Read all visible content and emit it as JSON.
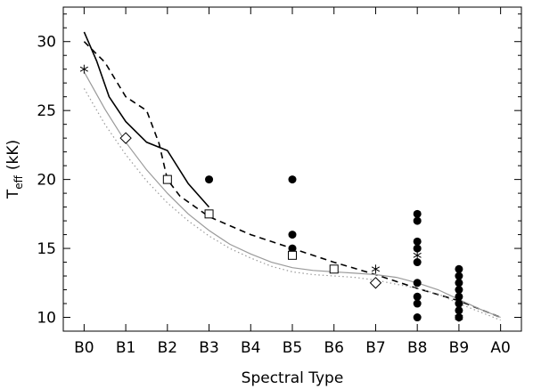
{
  "chart_data": {
    "type": "scatter",
    "title": "",
    "xlabel": "Spectral Type",
    "ylabel_main": "T",
    "ylabel_sub": "eff",
    "ylabel_unit": "(kK)",
    "categories": [
      "B0",
      "B1",
      "B2",
      "B3",
      "B4",
      "B5",
      "B6",
      "B7",
      "B8",
      "B9",
      "A0"
    ],
    "xlim": [
      -0.5,
      10.5
    ],
    "ylim": [
      9,
      32.5
    ],
    "yticks": [
      10,
      15,
      20,
      25,
      30
    ],
    "grid": false,
    "series": [
      {
        "style": "solid-black",
        "x": [
          0.0,
          0.3,
          0.6,
          1.0,
          1.5,
          2.0,
          2.5,
          3.0
        ],
        "y": [
          30.7,
          28.6,
          26.0,
          24.2,
          22.7,
          22.1,
          19.7,
          18.0
        ]
      },
      {
        "style": "dashed-black",
        "x": [
          0.0,
          0.5,
          1.0,
          1.5,
          1.8,
          2.0,
          2.3,
          3.0,
          4.0,
          5.0,
          6.0,
          7.0,
          8.0,
          9.0,
          10.0
        ],
        "y": [
          30.0,
          28.5,
          26.0,
          25.0,
          22.6,
          20.0,
          18.8,
          17.3,
          16.0,
          15.0,
          14.0,
          13.1,
          12.1,
          11.2,
          10.0
        ]
      },
      {
        "style": "solid-gray",
        "x": [
          0.0,
          0.5,
          1.0,
          1.5,
          2.0,
          2.5,
          3.0,
          3.5,
          4.0,
          4.5,
          5.0,
          5.5,
          6.0,
          6.5,
          7.0,
          7.5,
          8.0,
          8.5,
          9.0,
          9.5,
          10.0
        ],
        "y": [
          27.8,
          25.1,
          22.7,
          20.7,
          19.0,
          17.5,
          16.3,
          15.3,
          14.6,
          14.0,
          13.6,
          13.4,
          13.3,
          13.2,
          13.1,
          12.9,
          12.5,
          12.0,
          11.3,
          10.6,
          10.0
        ]
      },
      {
        "style": "dotted-gray",
        "x": [
          0.0,
          0.5,
          1.0,
          1.5,
          2.0,
          2.5,
          3.0,
          3.5,
          4.0,
          4.5,
          5.0,
          5.5,
          6.0,
          6.5,
          7.0,
          7.5,
          8.0,
          8.5,
          9.0,
          9.5,
          10.0
        ],
        "y": [
          26.6,
          24.0,
          21.8,
          19.9,
          18.3,
          17.0,
          15.9,
          15.0,
          14.3,
          13.7,
          13.3,
          13.1,
          13.0,
          12.9,
          12.7,
          12.4,
          12.1,
          11.7,
          11.0,
          10.4,
          9.8
        ]
      }
    ],
    "markers": {
      "filled_circles": [
        [
          3,
          20.0
        ],
        [
          5,
          20.0
        ],
        [
          5,
          16.0
        ],
        [
          5,
          15.0
        ],
        [
          8,
          17.5
        ],
        [
          8,
          17.0
        ],
        [
          8,
          15.5
        ],
        [
          8,
          15.0
        ],
        [
          8,
          14.0
        ],
        [
          8,
          12.5
        ],
        [
          8,
          11.5
        ],
        [
          8,
          11.0
        ],
        [
          8,
          10.0
        ],
        [
          9,
          13.5
        ],
        [
          9,
          13.0
        ],
        [
          9,
          12.5
        ],
        [
          9,
          12.0
        ],
        [
          9,
          11.5
        ],
        [
          9,
          11.0
        ],
        [
          9,
          10.5
        ],
        [
          9,
          10.0
        ]
      ],
      "open_squares": [
        [
          2,
          20.0
        ],
        [
          3,
          17.5
        ],
        [
          5,
          14.5
        ],
        [
          6,
          13.5
        ]
      ],
      "open_diamonds": [
        [
          1,
          23.0
        ],
        [
          7,
          12.5
        ]
      ],
      "asterisks": [
        [
          0,
          28.0
        ],
        [
          7,
          13.5
        ],
        [
          8,
          14.5
        ],
        [
          9,
          10.0
        ]
      ]
    }
  }
}
